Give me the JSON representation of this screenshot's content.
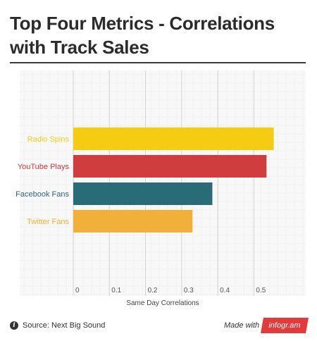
{
  "header": {
    "title": "Top Four Metrics - Correlations with Track Sales"
  },
  "footer": {
    "info_icon": "info-icon",
    "source": "Source: Next Big Sound",
    "made_with": "Made with",
    "brand": "infogr.am"
  },
  "colors": {
    "radio": "#f6cc12",
    "youtube": "#cf3d3e",
    "facebook": "#2a6b78",
    "twitter": "#f0b03a",
    "brand": "#e33b3b"
  },
  "chart_data": {
    "type": "bar",
    "orientation": "horizontal",
    "categories": [
      "Radio Spins",
      "YouTube Plays",
      "Facebook Fans",
      "Twitter Fans"
    ],
    "values": [
      0.555,
      0.535,
      0.385,
      0.33
    ],
    "colors": [
      "#f6cc12",
      "#cf3d3e",
      "#2a6b78",
      "#f0b03a"
    ],
    "xlabel": "Same Day Correlations",
    "xticks": [
      0,
      0.1,
      0.2,
      0.3,
      0.4,
      0.5
    ],
    "xtick_labels": [
      "0",
      "0.1",
      "0.2",
      "0.3",
      "0.4",
      "0.5"
    ],
    "xlim": [
      0,
      0.585
    ],
    "grid": true,
    "legend": "none"
  }
}
